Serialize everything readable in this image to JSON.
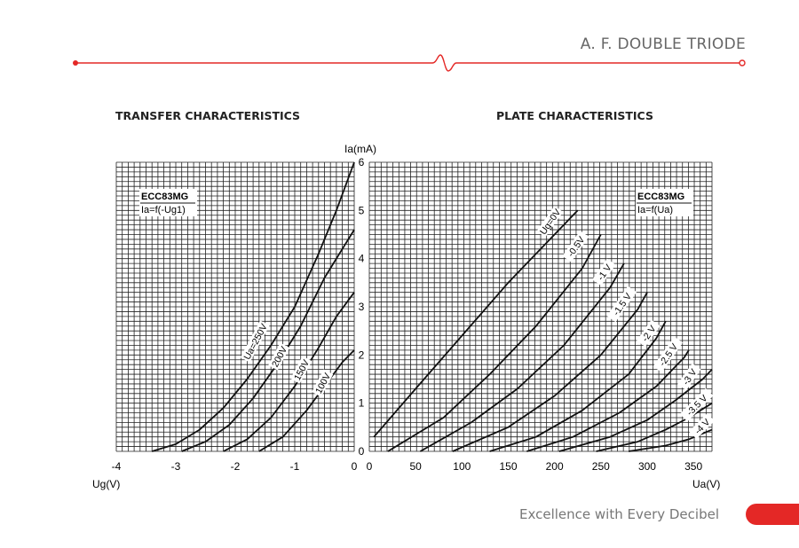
{
  "header": {
    "title": "A. F. DOUBLE TRIODE"
  },
  "footer": {
    "tagline": "Excellence with Every Decibel"
  },
  "colors": {
    "accent": "#e42826",
    "grid": "#222222",
    "curve": "#111111"
  },
  "chart_data": [
    {
      "type": "line",
      "title": "TRANSFER CHARACTERISTICS",
      "box_title": "ECC83MG",
      "box_subtitle": "Ia=f(-Ug1)",
      "xlabel": "Ug(V)",
      "ylabel": "Ia(mA)",
      "xlim": [
        -4,
        0
      ],
      "ylim": [
        0,
        6
      ],
      "xticks": [
        -4,
        -3,
        -2,
        -1,
        0
      ],
      "xticklabels": [
        "-4",
        "-3",
        "-2",
        "-1",
        "0"
      ],
      "yticks": [
        0,
        1,
        2,
        3,
        4,
        5,
        6
      ],
      "yticklabels": [
        "0",
        "1",
        "2",
        "3",
        "4",
        "5",
        "6"
      ],
      "grid": true,
      "series": [
        {
          "name": "Ua=250V",
          "x": [
            -3.4,
            -3.0,
            -2.6,
            -2.2,
            -1.8,
            -1.4,
            -1.0,
            -0.6,
            -0.3,
            0.0
          ],
          "y": [
            0.0,
            0.15,
            0.45,
            0.9,
            1.5,
            2.2,
            3.0,
            4.1,
            5.0,
            6.0
          ]
        },
        {
          "name": "200V",
          "x": [
            -2.9,
            -2.5,
            -2.1,
            -1.7,
            -1.3,
            -0.9,
            -0.5,
            -0.2,
            0.0
          ],
          "y": [
            0.0,
            0.2,
            0.55,
            1.1,
            1.8,
            2.6,
            3.6,
            4.2,
            4.6
          ]
        },
        {
          "name": "150V",
          "x": [
            -2.2,
            -1.8,
            -1.4,
            -1.0,
            -0.6,
            -0.3,
            0.0
          ],
          "y": [
            0.0,
            0.25,
            0.7,
            1.35,
            2.15,
            2.8,
            3.3
          ]
        },
        {
          "name": "100V",
          "x": [
            -1.6,
            -1.2,
            -0.8,
            -0.5,
            -0.2,
            0.0
          ],
          "y": [
            0.0,
            0.3,
            0.85,
            1.35,
            1.85,
            2.1
          ]
        }
      ]
    },
    {
      "type": "line",
      "title": "PLATE CHARACTERISTICS",
      "box_title": "ECC83MG",
      "box_subtitle": "Ia=f(Ua)",
      "xlabel": "Ua(V)",
      "ylabel": "",
      "xlim": [
        0,
        370
      ],
      "ylim": [
        0,
        6
      ],
      "xticks": [
        0,
        50,
        100,
        150,
        200,
        250,
        300,
        350
      ],
      "xticklabels": [
        "0",
        "50",
        "100",
        "150",
        "200",
        "250",
        "300",
        "350"
      ],
      "grid": true,
      "series": [
        {
          "name": "Ug=0V",
          "x": [
            5,
            50,
            100,
            150,
            200,
            225
          ],
          "y": [
            0.3,
            1.3,
            2.4,
            3.5,
            4.5,
            5.0
          ]
        },
        {
          "name": "-0.5V",
          "x": [
            20,
            80,
            130,
            180,
            230,
            250
          ],
          "y": [
            0.0,
            0.7,
            1.6,
            2.6,
            3.8,
            4.5
          ]
        },
        {
          "name": "-1 V",
          "x": [
            55,
            110,
            160,
            210,
            260,
            275
          ],
          "y": [
            0.0,
            0.6,
            1.3,
            2.2,
            3.4,
            3.9
          ]
        },
        {
          "name": "-1.5 V",
          "x": [
            90,
            150,
            200,
            250,
            290,
            300
          ],
          "y": [
            0.0,
            0.5,
            1.15,
            2.0,
            2.95,
            3.3
          ]
        },
        {
          "name": "-2 V",
          "x": [
            130,
            180,
            230,
            280,
            310,
            320
          ],
          "y": [
            0.0,
            0.3,
            0.85,
            1.6,
            2.35,
            2.7
          ]
        },
        {
          "name": "-2.5 V",
          "x": [
            170,
            220,
            270,
            310,
            340,
            345
          ],
          "y": [
            0.0,
            0.3,
            0.8,
            1.35,
            1.95,
            2.1
          ]
        },
        {
          "name": "-3 V",
          "x": [
            205,
            260,
            300,
            330,
            360,
            370
          ],
          "y": [
            0.0,
            0.3,
            0.65,
            1.05,
            1.5,
            1.7
          ]
        },
        {
          "name": "-3.5 V",
          "x": [
            245,
            290,
            320,
            345,
            370
          ],
          "y": [
            0.0,
            0.2,
            0.45,
            0.7,
            1.0
          ]
        },
        {
          "name": "-4 V",
          "x": [
            280,
            320,
            345,
            370
          ],
          "y": [
            0.0,
            0.12,
            0.25,
            0.45
          ]
        }
      ]
    }
  ],
  "shared_axis": {
    "label": "Ia(mA)"
  }
}
